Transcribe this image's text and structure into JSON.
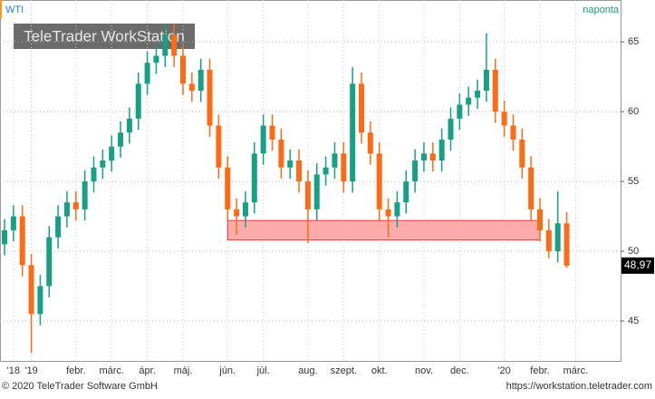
{
  "chart_data": {
    "type": "candlestick",
    "title": "WTI",
    "period": "naponta",
    "watermark": "TeleTrader WorkStation",
    "footer_left": "© 2020 TeleTrader Software GmbH",
    "footer_right": "https://workstation.teletrader.com",
    "categories": [
      null,
      "'18",
      null,
      "'19",
      null,
      null,
      null,
      null,
      "febr.",
      null,
      null,
      null,
      "márc.",
      null,
      null,
      null,
      "ápr.",
      null,
      null,
      null,
      "máj.",
      null,
      null,
      null,
      null,
      "jún.",
      null,
      null,
      null,
      "júl.",
      null,
      null,
      null,
      null,
      "aug.",
      null,
      null,
      null,
      "szept.",
      null,
      null,
      null,
      "okt.",
      null,
      null,
      null,
      null,
      "nov.",
      null,
      null,
      null,
      "dec.",
      null,
      null,
      null,
      null,
      "'20",
      null,
      null,
      null,
      "febr.",
      null,
      null,
      null,
      "márc."
    ],
    "series": [
      {
        "name": "WTI",
        "up_color": "#17a085",
        "down_color": "#ff6a13",
        "open": [
          50.5,
          51.5,
          52.5,
          49,
          45.5,
          47.5,
          51,
          52.5,
          53.5,
          53,
          55,
          56,
          56.5,
          57.5,
          58.5,
          59.5,
          62,
          63.5,
          64,
          65.5,
          64,
          62,
          61.5,
          63,
          59,
          56,
          53,
          52.5,
          53.5,
          57,
          59,
          58,
          56,
          56.5,
          55,
          53,
          55.5,
          56,
          57,
          55,
          62,
          58.5,
          57,
          53,
          52.5,
          53.5,
          55,
          56.5,
          57,
          56.5,
          58,
          59.5,
          60.5,
          61,
          61.5,
          63,
          60,
          59,
          58,
          56,
          53,
          51.5,
          50,
          52,
          null
        ],
        "high": [
          52.3,
          53.3,
          53.3,
          49.8,
          48.3,
          51.8,
          53.3,
          54.3,
          54.3,
          55.8,
          56.8,
          57.3,
          58.3,
          59.3,
          60.3,
          62.8,
          64.3,
          64.8,
          66.3,
          66.3,
          64.8,
          62.8,
          63.8,
          63.8,
          59.8,
          56.8,
          53.8,
          54.3,
          57.8,
          59.8,
          59.8,
          58.8,
          57.3,
          57.3,
          55.8,
          56.3,
          56.8,
          57.8,
          57.8,
          63.2,
          62.8,
          59.3,
          57.8,
          53.8,
          54.3,
          55.8,
          57.3,
          57.8,
          57.8,
          58.8,
          60.3,
          61.3,
          61.8,
          62.3,
          65.6,
          63.8,
          60.8,
          59.8,
          58.8,
          56.8,
          53.8,
          52.3,
          54.3,
          52.8,
          null
        ],
        "low": [
          49.7,
          50.7,
          48.2,
          42.7,
          44.7,
          46.7,
          50.2,
          51.7,
          52.2,
          52.2,
          54.2,
          55.2,
          55.7,
          56.7,
          57.7,
          58.7,
          61.2,
          62.7,
          63.2,
          63.2,
          61.2,
          60.7,
          60.7,
          58.2,
          55.2,
          52.2,
          51.2,
          51.7,
          52.7,
          56.2,
          57.2,
          55.2,
          55.2,
          54.2,
          50.6,
          52.2,
          54.7,
          55.2,
          54.2,
          54.2,
          57.7,
          56.2,
          52.2,
          51,
          51.7,
          52.7,
          54.2,
          55.7,
          55.7,
          55.7,
          57.2,
          58.7,
          59.7,
          60.2,
          60.7,
          59.2,
          58.2,
          57.2,
          55.2,
          52.2,
          50.7,
          49.5,
          49.2,
          48.8,
          null
        ],
        "close": [
          51.5,
          52.5,
          49,
          45.5,
          47.5,
          51,
          52.5,
          53.5,
          53,
          55,
          56,
          56.5,
          57.5,
          58.5,
          59.5,
          62,
          63.5,
          64,
          65.5,
          64,
          62,
          61.5,
          63,
          59,
          56,
          53,
          52.5,
          53.5,
          57,
          59,
          58,
          56,
          56.5,
          55,
          53,
          55.5,
          56,
          57,
          55,
          62,
          58.5,
          57,
          53,
          52.5,
          53.5,
          55,
          56.5,
          57,
          56.5,
          58,
          59.5,
          60.5,
          61,
          61.5,
          63,
          60,
          59,
          58,
          56,
          53,
          51.5,
          50,
          52,
          48.97,
          null
        ]
      }
    ],
    "last_value": {
      "value": 48.97,
      "label": "48,97"
    },
    "zone": {
      "from": 25,
      "to": 60,
      "ylim": [
        50.8,
        52.2
      ],
      "color": "#ffabab",
      "stroke": "#e0383b"
    },
    "ylim": [
      42.14,
      68
    ],
    "yticks": [
      45,
      50,
      55,
      60,
      65
    ],
    "grid": true
  }
}
